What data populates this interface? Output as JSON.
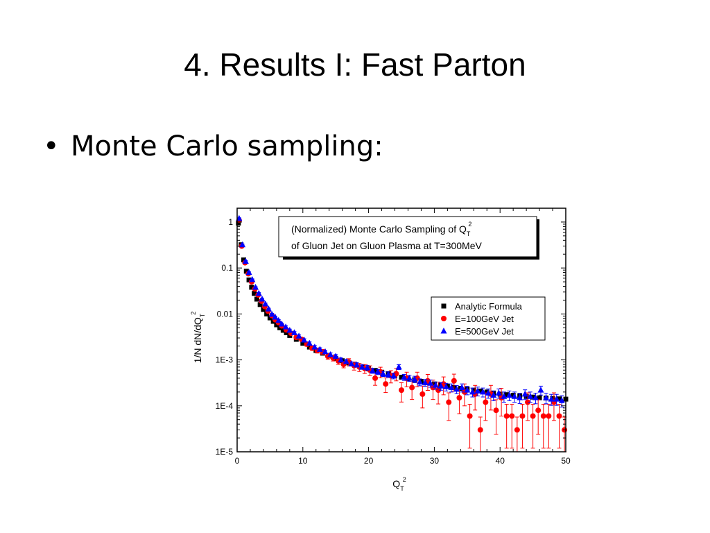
{
  "slide": {
    "title": "4. Results I: Fast Parton",
    "bullet_symbol": "•",
    "bullet_text": "Monte Carlo sampling:"
  },
  "chart_data": {
    "type": "scatter",
    "title_lines": [
      "(Normalized) Monte Carlo Sampling of Q",
      "of Gluon Jet on Gluon Plasma at T=300MeV"
    ],
    "title_sub": "T",
    "title_sup": "2",
    "xlabel": "Q",
    "xlabel_sub": "T",
    "xlabel_sup": "2",
    "ylabel": "1/N dN/dQ",
    "ylabel_sub": "T",
    "ylabel_sup": "2",
    "xlim": [
      0,
      50
    ],
    "ylim": [
      1e-05,
      2
    ],
    "y_scale": "log",
    "x_ticks": [
      0,
      10,
      20,
      30,
      40,
      50
    ],
    "y_ticks": [
      {
        "value": 1,
        "label": "1"
      },
      {
        "value": 0.1,
        "label": "0.1"
      },
      {
        "value": 0.01,
        "label": "0.01"
      },
      {
        "value": 0.001,
        "label": "1E-3"
      },
      {
        "value": 0.0001,
        "label": "1E-4"
      },
      {
        "value": 1e-05,
        "label": "1E-5"
      }
    ],
    "legend_position": "right",
    "series": [
      {
        "name": "Analytic Formula",
        "marker": "square",
        "color": "#000000",
        "x": [
          0.2,
          0.6,
          1.0,
          1.4,
          1.8,
          2.2,
          2.6,
          3.0,
          3.5,
          4.0,
          4.5,
          5.0,
          5.5,
          6.0,
          6.5,
          7.0,
          7.5,
          8.0,
          9,
          10,
          11,
          12,
          13,
          14,
          15,
          16,
          17,
          18,
          19,
          20,
          21,
          22,
          23,
          24,
          25,
          26,
          27,
          28,
          29,
          30,
          31,
          32,
          33,
          34,
          35,
          36,
          37,
          38,
          39,
          40,
          41,
          42,
          43,
          44,
          45,
          46,
          47,
          48,
          49,
          50
        ],
        "y": [
          0.95,
          0.32,
          0.15,
          0.085,
          0.055,
          0.038,
          0.028,
          0.021,
          0.016,
          0.0125,
          0.01,
          0.0082,
          0.0069,
          0.0058,
          0.005,
          0.0044,
          0.0039,
          0.0034,
          0.0028,
          0.0023,
          0.0019,
          0.0016,
          0.0014,
          0.00122,
          0.00108,
          0.00096,
          0.00086,
          0.00078,
          0.0007,
          0.00064,
          0.00059,
          0.00054,
          0.0005,
          0.00046,
          0.00042,
          0.00039,
          0.00037,
          0.00034,
          0.00032,
          0.0003,
          0.00028,
          0.00027,
          0.00025,
          0.00024,
          0.00023,
          0.00022,
          0.00021,
          0.0002,
          0.00019,
          0.00018,
          0.000175,
          0.00017,
          0.000165,
          0.00016,
          0.000155,
          0.00015,
          0.000148,
          0.000145,
          0.000142,
          0.00014
        ]
      },
      {
        "name": "E=100GeV Jet",
        "marker": "circle",
        "color": "#ff0000",
        "x": [
          0.3,
          0.7,
          1.2,
          1.7,
          2.2,
          2.7,
          3.2,
          3.7,
          4.2,
          4.7,
          5.3,
          5.8,
          6.3,
          6.8,
          7.5,
          8.2,
          9,
          9.8,
          10.6,
          11.4,
          12.2,
          13,
          13.8,
          14.6,
          15.4,
          16.2,
          17,
          17.8,
          18.6,
          19.4,
          20.2,
          21,
          21.8,
          22.6,
          23.4,
          24.2,
          25,
          25.8,
          26.6,
          27.4,
          28.2,
          29,
          29.8,
          30.6,
          31.4,
          32.2,
          33,
          33.8,
          34.6,
          35.4,
          36.2,
          37,
          37.8,
          38.6,
          39.4,
          40.2,
          41,
          41.8,
          42.6,
          43.4,
          44.2,
          45,
          45.8,
          46.6,
          47.4,
          48.2,
          49,
          49.8
        ],
        "y": [
          1.1,
          0.3,
          0.13,
          0.075,
          0.05,
          0.035,
          0.026,
          0.019,
          0.0145,
          0.0115,
          0.0092,
          0.0075,
          0.0065,
          0.0055,
          0.0045,
          0.0038,
          0.0031,
          0.0028,
          0.0022,
          0.0018,
          0.0016,
          0.0015,
          0.0012,
          0.0011,
          0.00095,
          0.0008,
          0.0009,
          0.00075,
          0.0007,
          0.00065,
          0.0006,
          0.0004,
          0.00055,
          0.0003,
          0.00045,
          0.0005,
          0.00022,
          0.0004,
          0.00025,
          0.0004,
          0.00018,
          0.00035,
          0.00025,
          0.00022,
          0.0003,
          0.00012,
          0.00035,
          0.00015,
          0.0002,
          6e-05,
          0.00018,
          3e-05,
          0.00012,
          0.00018,
          8e-05,
          0.00015,
          6e-05,
          6e-05,
          3e-05,
          6e-05,
          0.00012,
          6e-05,
          8e-05,
          6e-05,
          6e-05,
          0.00012,
          6e-05,
          3e-05
        ],
        "yerr_frac": [
          0.05,
          0.05,
          0.05,
          0.05,
          0.05,
          0.05,
          0.05,
          0.06,
          0.06,
          0.06,
          0.07,
          0.07,
          0.07,
          0.08,
          0.08,
          0.08,
          0.09,
          0.09,
          0.1,
          0.1,
          0.12,
          0.12,
          0.14,
          0.14,
          0.16,
          0.16,
          0.18,
          0.2,
          0.2,
          0.22,
          0.24,
          0.3,
          0.26,
          0.35,
          0.3,
          0.3,
          0.45,
          0.35,
          0.45,
          0.35,
          0.5,
          0.38,
          0.45,
          0.5,
          0.42,
          0.6,
          0.4,
          0.55,
          0.5,
          0.8,
          0.55,
          0.9,
          0.6,
          0.55,
          0.7,
          0.6,
          0.8,
          0.8,
          0.9,
          0.8,
          0.6,
          0.8,
          0.7,
          0.8,
          0.8,
          0.6,
          0.8,
          0.9
        ]
      },
      {
        "name": "E=500GeV Jet",
        "marker": "triangle",
        "color": "#0000ff",
        "x": [
          0.3,
          0.8,
          1.3,
          1.8,
          2.3,
          2.8,
          3.3,
          3.8,
          4.3,
          4.8,
          5.3,
          5.8,
          6.3,
          6.8,
          7.4,
          8.0,
          8.7,
          9.4,
          10.2,
          11,
          11.8,
          12.6,
          13.4,
          14.2,
          15,
          15.8,
          16.6,
          17.4,
          18.2,
          19,
          19.8,
          20.6,
          21.4,
          22.2,
          23,
          23.8,
          24.6,
          25.4,
          26.2,
          27,
          27.8,
          28.6,
          29.4,
          30.2,
          31,
          31.8,
          32.6,
          33.4,
          34.2,
          35,
          35.8,
          36.6,
          37.4,
          38.2,
          39,
          39.8,
          40.6,
          41.4,
          42.2,
          43,
          43.8,
          44.6,
          45.4,
          46.2,
          47,
          47.8,
          48.6,
          49.4
        ],
        "y": [
          1.2,
          0.32,
          0.14,
          0.08,
          0.056,
          0.038,
          0.028,
          0.021,
          0.0165,
          0.0128,
          0.0098,
          0.0085,
          0.0072,
          0.006,
          0.0052,
          0.0044,
          0.0039,
          0.0033,
          0.0027,
          0.0023,
          0.0019,
          0.0017,
          0.0015,
          0.0013,
          0.0012,
          0.001,
          0.00092,
          0.00082,
          0.00078,
          0.0007,
          0.00068,
          0.00058,
          0.00055,
          0.0005,
          0.00048,
          0.00045,
          0.0007,
          0.00042,
          0.0004,
          0.00038,
          0.00033,
          0.00032,
          0.00031,
          0.00028,
          0.00027,
          0.00026,
          0.00025,
          0.00023,
          0.00025,
          0.00022,
          0.0002,
          0.00021,
          0.0002,
          0.00019,
          0.00017,
          0.00019,
          0.00016,
          0.00017,
          0.00016,
          0.00015,
          0.00018,
          0.00016,
          0.00015,
          0.00022,
          0.00015,
          0.00014,
          0.00014,
          0.00013
        ],
        "yerr_frac": [
          0.03,
          0.03,
          0.03,
          0.03,
          0.03,
          0.03,
          0.04,
          0.04,
          0.04,
          0.04,
          0.05,
          0.05,
          0.05,
          0.05,
          0.06,
          0.06,
          0.06,
          0.06,
          0.07,
          0.07,
          0.08,
          0.08,
          0.08,
          0.09,
          0.09,
          0.1,
          0.1,
          0.1,
          0.11,
          0.11,
          0.12,
          0.12,
          0.13,
          0.13,
          0.14,
          0.14,
          0.12,
          0.15,
          0.15,
          0.16,
          0.17,
          0.17,
          0.18,
          0.18,
          0.19,
          0.19,
          0.2,
          0.2,
          0.2,
          0.21,
          0.22,
          0.22,
          0.22,
          0.23,
          0.24,
          0.23,
          0.25,
          0.24,
          0.25,
          0.25,
          0.24,
          0.25,
          0.26,
          0.22,
          0.26,
          0.27,
          0.27,
          0.28
        ]
      }
    ]
  }
}
